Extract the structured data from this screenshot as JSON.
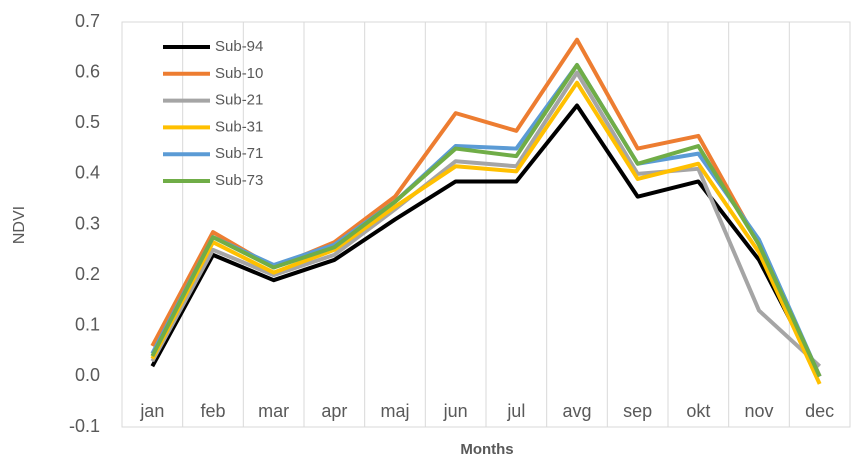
{
  "chart_data": {
    "type": "line",
    "y_label": "NDVI",
    "x_label": "Months",
    "categories": [
      "jan",
      "feb",
      "mar",
      "apr",
      "maj",
      "jun",
      "jul",
      "avg",
      "sep",
      "okt",
      "nov",
      "dec"
    ],
    "series": [
      {
        "name": "Sub-94",
        "color": "#000000",
        "values": [
          0.02,
          0.24,
          0.19,
          0.23,
          0.31,
          0.385,
          0.385,
          0.535,
          0.355,
          0.385,
          0.23,
          0.0
        ]
      },
      {
        "name": "Sub-10",
        "color": "#ed7d31",
        "values": [
          0.06,
          0.285,
          0.215,
          0.265,
          0.355,
          0.52,
          0.485,
          0.665,
          0.45,
          0.475,
          0.26,
          0.0
        ]
      },
      {
        "name": "Sub-21",
        "color": "#a5a5a5",
        "values": [
          0.03,
          0.25,
          0.2,
          0.24,
          0.33,
          0.425,
          0.415,
          0.6,
          0.4,
          0.41,
          0.13,
          0.02
        ]
      },
      {
        "name": "Sub-31",
        "color": "#ffc000",
        "values": [
          0.035,
          0.265,
          0.205,
          0.25,
          0.335,
          0.415,
          0.405,
          0.58,
          0.39,
          0.42,
          0.245,
          -0.015
        ]
      },
      {
        "name": "Sub-71",
        "color": "#5b9bd5",
        "values": [
          0.045,
          0.275,
          0.22,
          0.26,
          0.345,
          0.455,
          0.45,
          0.615,
          0.42,
          0.44,
          0.27,
          0.0
        ]
      },
      {
        "name": "Sub-73",
        "color": "#70ad47",
        "values": [
          0.04,
          0.275,
          0.215,
          0.255,
          0.345,
          0.45,
          0.435,
          0.615,
          0.42,
          0.455,
          0.26,
          0.0
        ]
      }
    ],
    "ylim": [
      -0.1,
      0.7
    ],
    "yticks": [
      -0.1,
      {
        "value": 0,
        "label": "0.0"
      },
      0.1,
      0.2,
      0.3,
      0.4,
      0.5,
      0.6,
      0.7
    ]
  }
}
